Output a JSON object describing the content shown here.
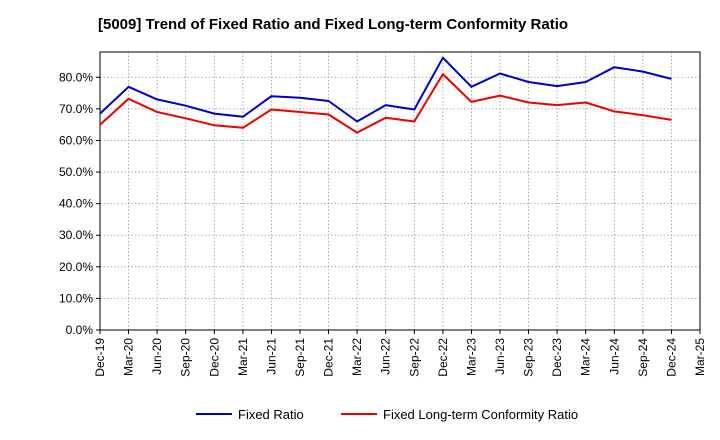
{
  "chart_data": {
    "type": "line",
    "title": "[5009]  Trend of Fixed Ratio and Fixed Long-term Conformity Ratio",
    "xlabel": "",
    "ylabel": "",
    "categories": [
      "Dec-19",
      "Mar-20",
      "Jun-20",
      "Sep-20",
      "Dec-20",
      "Mar-21",
      "Jun-21",
      "Sep-21",
      "Dec-21",
      "Mar-22",
      "Jun-22",
      "Sep-22",
      "Dec-22",
      "Mar-23",
      "Jun-23",
      "Sep-23",
      "Dec-23",
      "Mar-24",
      "Jun-24",
      "Sep-24",
      "Dec-24",
      "Mar-25"
    ],
    "y_ticks": [
      "0.0%",
      "10.0%",
      "20.0%",
      "30.0%",
      "40.0%",
      "50.0%",
      "60.0%",
      "70.0%",
      "80.0%"
    ],
    "ylim": [
      0,
      88
    ],
    "grid": true,
    "legend_position": "bottom",
    "series": [
      {
        "name": "Fixed Ratio",
        "color": "#0000cc",
        "values": [
          68.5,
          77.0,
          73.0,
          71.0,
          68.5,
          67.5,
          74.0,
          73.5,
          72.5,
          66.0,
          71.2,
          69.8,
          86.2,
          77.0,
          81.2,
          78.5,
          77.2,
          78.5,
          83.2,
          81.8,
          79.5,
          null
        ]
      },
      {
        "name": "Fixed Long-term Conformity Ratio",
        "color": "#ee0000",
        "values": [
          65.0,
          73.2,
          69.0,
          67.0,
          64.8,
          64.0,
          69.8,
          69.0,
          68.2,
          62.5,
          67.2,
          66.0,
          81.0,
          72.2,
          74.2,
          72.0,
          71.2,
          72.0,
          69.2,
          68.0,
          66.5,
          null
        ]
      }
    ]
  }
}
